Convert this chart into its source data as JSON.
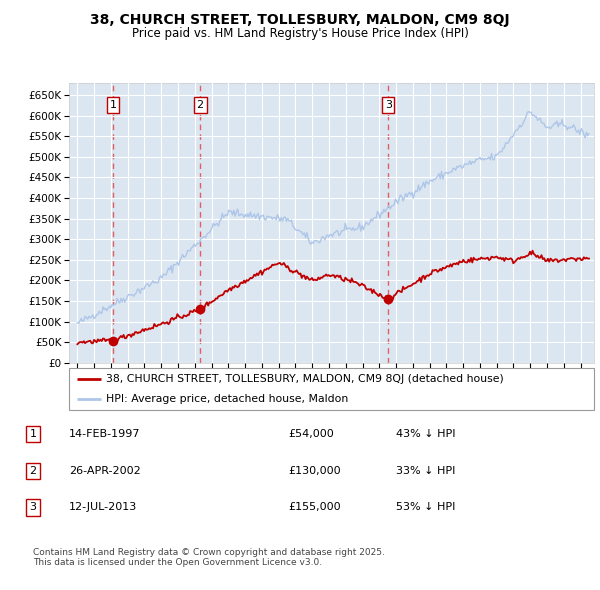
{
  "title_line1": "38, CHURCH STREET, TOLLESBURY, MALDON, CM9 8QJ",
  "title_line2": "Price paid vs. HM Land Registry's House Price Index (HPI)",
  "ylim": [
    0,
    680000
  ],
  "yticks": [
    0,
    50000,
    100000,
    150000,
    200000,
    250000,
    300000,
    350000,
    400000,
    450000,
    500000,
    550000,
    600000,
    650000
  ],
  "ytick_labels": [
    "£0",
    "£50K",
    "£100K",
    "£150K",
    "£200K",
    "£250K",
    "£300K",
    "£350K",
    "£400K",
    "£450K",
    "£500K",
    "£550K",
    "£600K",
    "£650K"
  ],
  "xlim": [
    1994.5,
    2025.8
  ],
  "xticks": [
    1995,
    1996,
    1997,
    1998,
    1999,
    2000,
    2001,
    2002,
    2003,
    2004,
    2005,
    2006,
    2007,
    2008,
    2009,
    2010,
    2011,
    2012,
    2013,
    2014,
    2015,
    2016,
    2017,
    2018,
    2019,
    2020,
    2021,
    2022,
    2023,
    2024,
    2025
  ],
  "hpi_color": "#aec6e8",
  "price_color": "#c00000",
  "vline_color": "#e06060",
  "sale_dates": [
    1997.12,
    2002.32,
    2013.53
  ],
  "sale_prices": [
    54000,
    130000,
    155000
  ],
  "sale_labels": [
    "1",
    "2",
    "3"
  ],
  "legend_label_price": "38, CHURCH STREET, TOLLESBURY, MALDON, CM9 8QJ (detached house)",
  "legend_label_hpi": "HPI: Average price, detached house, Maldon",
  "table_entries": [
    {
      "num": "1",
      "date": "14-FEB-1997",
      "price": "£54,000",
      "pct": "43% ↓ HPI"
    },
    {
      "num": "2",
      "date": "26-APR-2002",
      "price": "£130,000",
      "pct": "33% ↓ HPI"
    },
    {
      "num": "3",
      "date": "12-JUL-2013",
      "price": "£155,000",
      "pct": "53% ↓ HPI"
    }
  ],
  "footnote": "Contains HM Land Registry data © Crown copyright and database right 2025.\nThis data is licensed under the Open Government Licence v3.0.",
  "background_color": "#ffffff",
  "plot_bg_color": "#dce6f1",
  "grid_color": "#ffffff",
  "box_color": "#c00000"
}
